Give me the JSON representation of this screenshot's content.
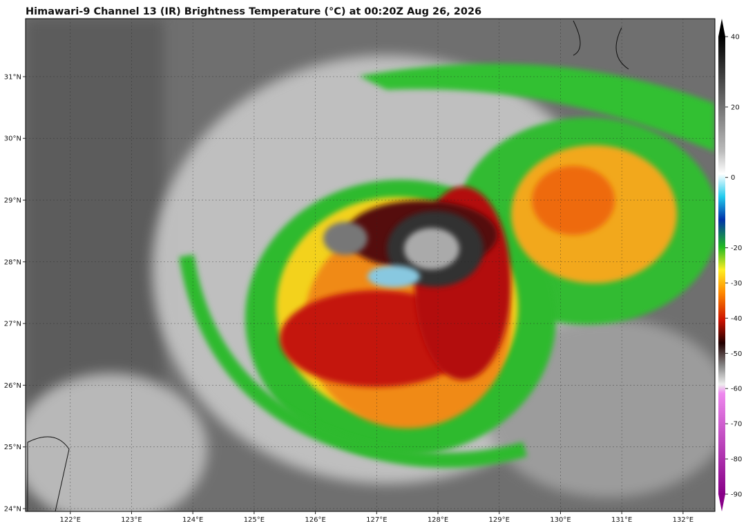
{
  "title": "Himawari-9 Channel 13 (IR) Brightness Temperature (°C) at 00:20Z Aug 26, 2026",
  "map": {
    "xlim": [
      121.27,
      132.52
    ],
    "ylim": [
      23.955,
      31.94
    ],
    "xticks": [
      {
        "value": 122,
        "label": "122°E"
      },
      {
        "value": 123,
        "label": "123°E"
      },
      {
        "value": 124,
        "label": "124°E"
      },
      {
        "value": 125,
        "label": "125°E"
      },
      {
        "value": 126,
        "label": "126°E"
      },
      {
        "value": 127,
        "label": "127°E"
      },
      {
        "value": 128,
        "label": "128°E"
      },
      {
        "value": 129,
        "label": "129°E"
      },
      {
        "value": 130,
        "label": "130°E"
      },
      {
        "value": 131,
        "label": "131°E"
      },
      {
        "value": 132,
        "label": "132°E"
      }
    ],
    "yticks": [
      {
        "value": 24,
        "label": "24°N"
      },
      {
        "value": 25,
        "label": "25°N"
      },
      {
        "value": 26,
        "label": "26°N"
      },
      {
        "value": 27,
        "label": "27°N"
      },
      {
        "value": 28,
        "label": "28°N"
      },
      {
        "value": 29,
        "label": "29°N"
      },
      {
        "value": 30,
        "label": "30°N"
      },
      {
        "value": 31,
        "label": "31°N"
      }
    ]
  },
  "colorbar": {
    "ticks": [
      40,
      20,
      0,
      -20,
      -30,
      -40,
      -50,
      -60,
      -70,
      -80,
      -90
    ]
  }
}
